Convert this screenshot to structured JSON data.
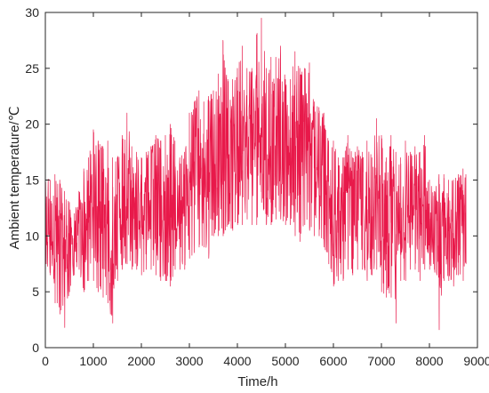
{
  "chart_data": {
    "type": "line",
    "title": "",
    "xlabel": "Time/h",
    "ylabel": "Ambient temperature/℃",
    "xlim": [
      0,
      9000
    ],
    "ylim": [
      0,
      30
    ],
    "xticks": [
      0,
      1000,
      2000,
      3000,
      4000,
      5000,
      6000,
      7000,
      8000,
      9000
    ],
    "yticks": [
      0,
      5,
      10,
      15,
      20,
      25,
      30
    ],
    "grid": false,
    "legend": "none",
    "line_color": "#e8194a",
    "series": [
      {
        "x": [
          0,
          100,
          200,
          300,
          400,
          500,
          600,
          700,
          800,
          900,
          1000,
          1100,
          1200,
          1300,
          1400,
          1500,
          1600,
          1700,
          1800,
          1900,
          2000,
          2100,
          2200,
          2300,
          2400,
          2500,
          2600,
          2700,
          2800,
          2900,
          3000,
          3100,
          3200,
          3300,
          3400,
          3500,
          3600,
          3700,
          3800,
          3900,
          4000,
          4100,
          4200,
          4300,
          4400,
          4500,
          4600,
          4700,
          4800,
          4900,
          5000,
          5100,
          5200,
          5300,
          5400,
          5500,
          5600,
          5700,
          5800,
          5900,
          6000,
          6100,
          6200,
          6300,
          6400,
          6500,
          6600,
          6700,
          6800,
          6900,
          7000,
          7100,
          7200,
          7300,
          7400,
          7500,
          7600,
          7700,
          7800,
          7900,
          8000,
          8100,
          8200,
          8300,
          8400,
          8500,
          8600,
          8700,
          8760
        ],
        "min": [
          7,
          6.5,
          4,
          3,
          1.8,
          5,
          6.5,
          7,
          5,
          6,
          6,
          5,
          4.5,
          4,
          2.2,
          6,
          7,
          7.5,
          7,
          7,
          6.5,
          7,
          7,
          6.5,
          6,
          6,
          5.5,
          7,
          7,
          7,
          8,
          8.5,
          9,
          9,
          8,
          10,
          10,
          10,
          11,
          10.5,
          11,
          11,
          11.5,
          11,
          11,
          13,
          11,
          11,
          11.5,
          11.5,
          11,
          11,
          10,
          9.5,
          11,
          10.5,
          10,
          10,
          9,
          7.5,
          5.5,
          6,
          6,
          7,
          6.5,
          7,
          7,
          6,
          6.5,
          7,
          5,
          4.5,
          4.5,
          2.2,
          6,
          6,
          7,
          7,
          6,
          7,
          7,
          7,
          1.6,
          6,
          6,
          5.5,
          6.5,
          6,
          7.5
        ],
        "max": [
          16,
          15,
          15.5,
          15,
          14,
          13,
          12,
          14,
          16,
          17,
          19.5,
          18.5,
          18,
          18.5,
          17,
          17,
          19,
          21,
          18,
          17.5,
          17,
          17.5,
          18,
          19,
          18.5,
          19,
          20,
          18.5,
          17,
          17.5,
          21,
          22,
          23,
          22,
          22.5,
          23,
          24.5,
          27.5,
          24,
          24,
          25,
          27,
          25,
          25,
          28,
          29.5,
          25,
          26,
          26,
          27,
          24,
          24,
          26.5,
          25,
          25,
          25.5,
          22,
          21.5,
          21,
          18.5,
          18.5,
          17,
          17,
          19,
          17,
          18,
          17.5,
          18.5,
          17,
          20.5,
          19,
          17,
          19,
          17.5,
          17,
          18.5,
          17.5,
          18,
          17.5,
          19,
          15,
          14,
          15.5,
          15.5,
          15,
          15,
          15.5,
          16,
          15.5
        ]
      }
    ]
  }
}
